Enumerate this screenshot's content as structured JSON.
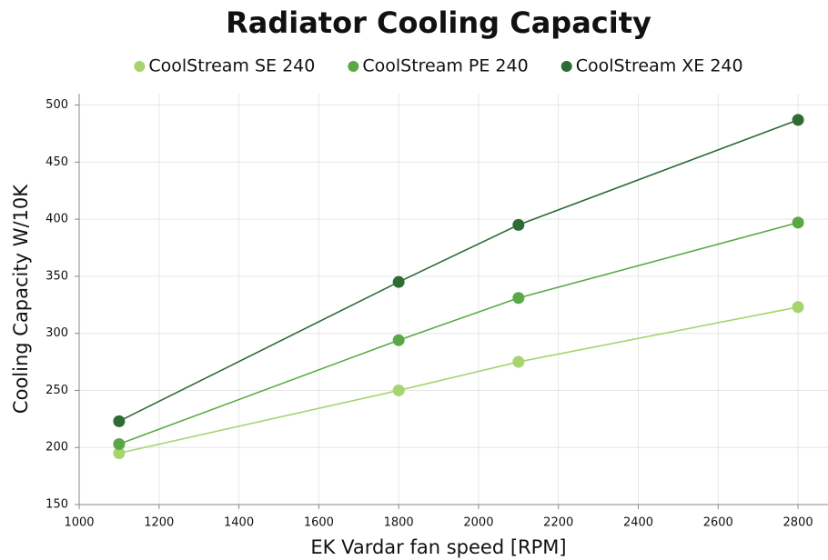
{
  "chart_data": {
    "type": "line",
    "title": "Radiator Cooling Capacity",
    "x_label": "EK Vardar fan speed [RPM]",
    "y_label": "Cooling Capacity W/10K",
    "x": [
      1100,
      1800,
      2100,
      2800
    ],
    "series": [
      {
        "name": "CoolStream SE 240",
        "color": "#a6d46e",
        "values": [
          195,
          250,
          275,
          323
        ]
      },
      {
        "name": "CoolStream PE 240",
        "color": "#5aa845",
        "values": [
          203,
          294,
          331,
          397
        ]
      },
      {
        "name": "CoolStream XE 240",
        "color": "#2e6b35",
        "values": [
          223,
          345,
          395,
          487
        ]
      }
    ],
    "xlim": [
      1000,
      2875
    ],
    "xticks": [
      1000,
      1200,
      1400,
      1600,
      1800,
      2000,
      2200,
      2400,
      2600,
      2800
    ],
    "ylim": [
      150,
      510
    ],
    "yticks": [
      150,
      200,
      250,
      300,
      350,
      400,
      450,
      500
    ],
    "grid": true,
    "legend": "top"
  }
}
